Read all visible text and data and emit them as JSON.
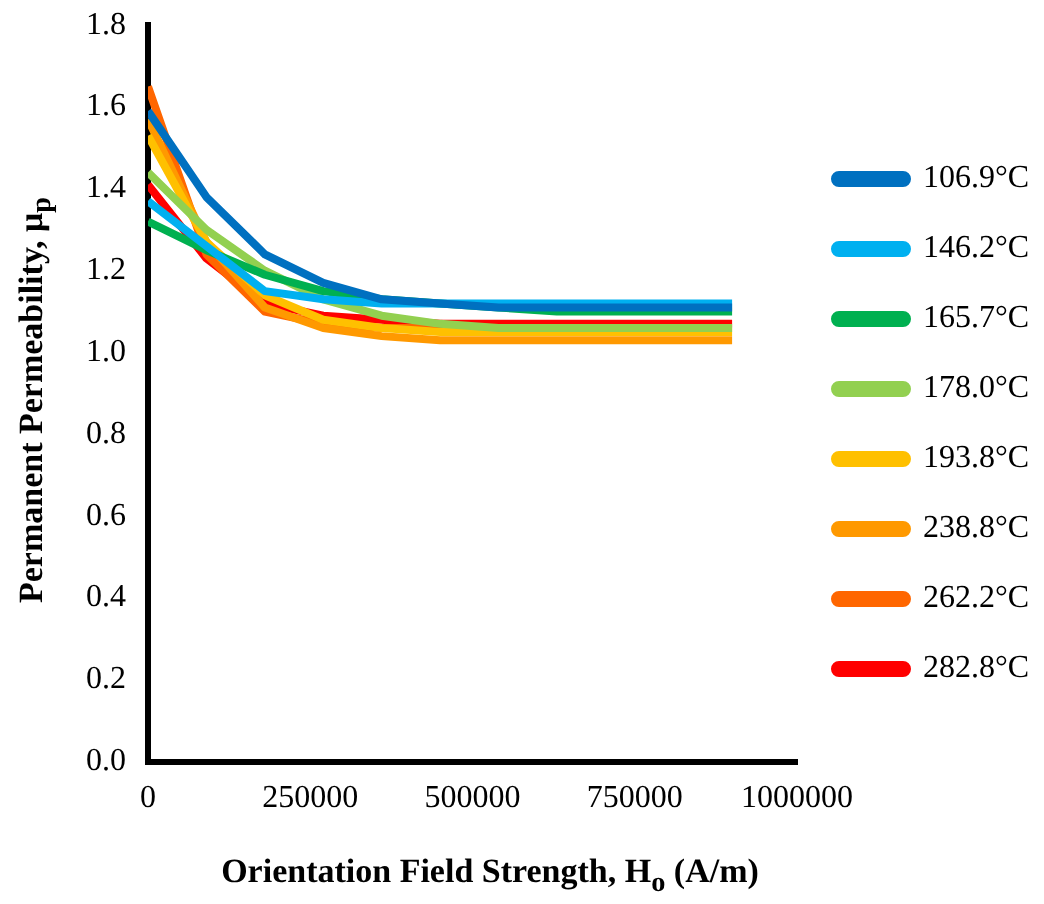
{
  "chart_data": {
    "type": "line",
    "xlabel": "Orientation Field Strength, H$_{o}$ (A/m)",
    "ylabel": "Permanent Permeability, μ$_{p}$",
    "x": [
      0,
      90000,
      180000,
      270000,
      360000,
      450000,
      540000,
      630000,
      720000,
      810000,
      900000
    ],
    "xlim": [
      0,
      1000000
    ],
    "xticks": [
      0,
      250000,
      500000,
      750000,
      1000000
    ],
    "ylim": [
      0,
      1.8
    ],
    "yticks": [
      {
        "value": 0,
        "label": "0.0"
      },
      0.2,
      0.4,
      0.6,
      0.8,
      {
        "value": 1,
        "label": "1.0"
      },
      1.2,
      1.4,
      1.6,
      1.8
    ],
    "grid": false,
    "legend": "right",
    "marker": "none",
    "series": [
      {
        "name": "106.9°C",
        "color": "#0070c0",
        "values": [
          1.59,
          1.38,
          1.24,
          1.17,
          1.13,
          1.12,
          1.11,
          1.11,
          1.11,
          1.11,
          1.11
        ]
      },
      {
        "name": "146.2°C",
        "color": "#00b0f0",
        "values": [
          1.37,
          1.26,
          1.15,
          1.13,
          1.12,
          1.12,
          1.12,
          1.12,
          1.12,
          1.12,
          1.12
        ]
      },
      {
        "name": "165.7°C",
        "color": "#00b050",
        "values": [
          1.32,
          1.25,
          1.19,
          1.15,
          1.13,
          1.12,
          1.11,
          1.1,
          1.1,
          1.1,
          1.1
        ]
      },
      {
        "name": "178.0°C",
        "color": "#92d050",
        "values": [
          1.44,
          1.3,
          1.2,
          1.13,
          1.09,
          1.07,
          1.06,
          1.06,
          1.06,
          1.06,
          1.06
        ]
      },
      {
        "name": "193.8°C",
        "color": "#ffc000",
        "values": [
          1.53,
          1.27,
          1.14,
          1.08,
          1.06,
          1.05,
          1.05,
          1.05,
          1.05,
          1.05,
          1.05
        ]
      },
      {
        "name": "238.8°C",
        "color": "#ff9900",
        "values": [
          1.57,
          1.27,
          1.11,
          1.06,
          1.04,
          1.03,
          1.03,
          1.03,
          1.03,
          1.03,
          1.03
        ]
      },
      {
        "name": "262.2°C",
        "color": "#ff6600",
        "values": [
          1.65,
          1.24,
          1.1,
          1.07,
          1.06,
          1.06,
          1.06,
          1.06,
          null,
          null,
          null
        ]
      },
      {
        "name": "282.8°C",
        "color": "#ff0000",
        "values": [
          1.41,
          1.23,
          1.12,
          1.09,
          1.08,
          1.07,
          1.07,
          1.07,
          1.07,
          1.07,
          1.07
        ]
      }
    ]
  }
}
